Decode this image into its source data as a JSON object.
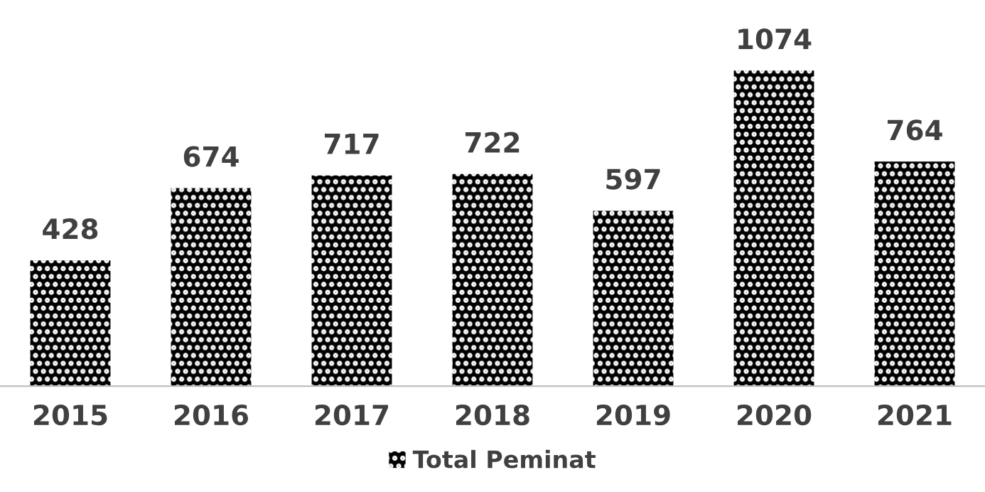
{
  "chart_data": {
    "type": "bar",
    "categories": [
      "2015",
      "2016",
      "2017",
      "2018",
      "2019",
      "2020",
      "2021"
    ],
    "series": [
      {
        "name": "Total Peminat",
        "color": "#000000",
        "values": [
          428,
          674,
          717,
          722,
          597,
          1074,
          764
        ]
      }
    ],
    "data_labels": true,
    "legend": "bottom",
    "grid": false
  }
}
